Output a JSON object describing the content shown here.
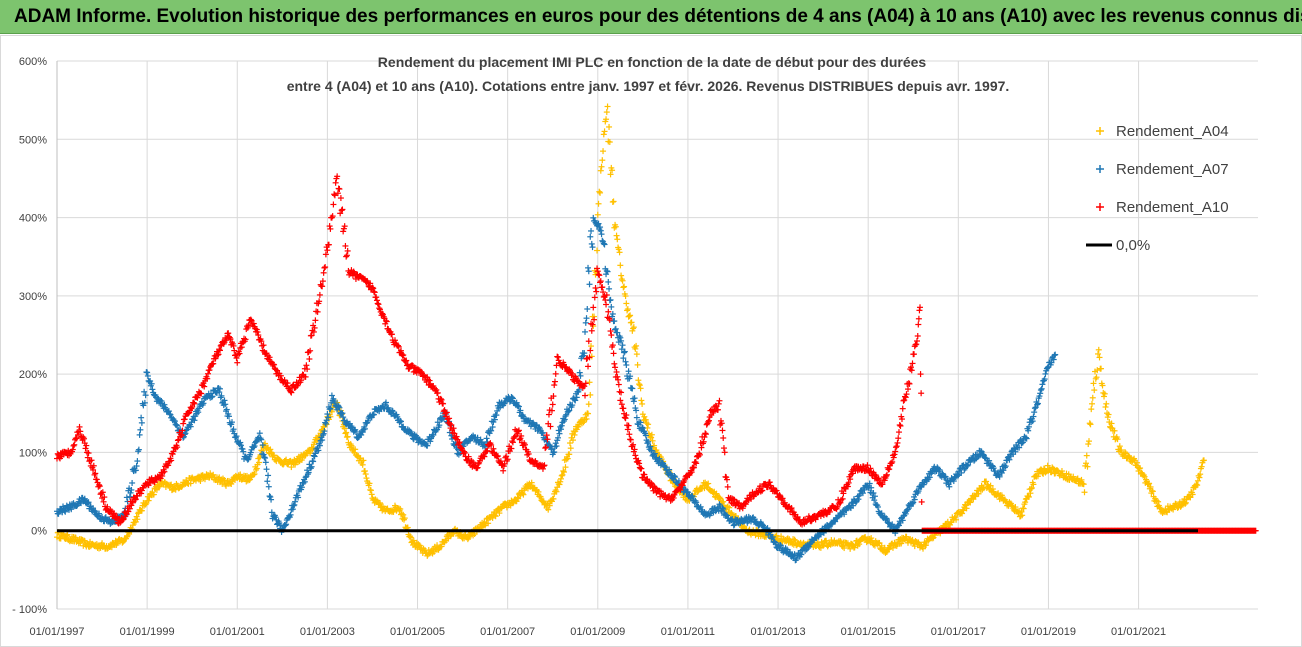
{
  "banner": {
    "title": "ADAM Informe. Evolution historique des performances en euros pour des détentions de 4 ans (A04) à 10 ans (A10) avec les revenus connus distribués"
  },
  "chart_data": {
    "type": "scatter",
    "title_lines": [
      "Rendement du placement IMI PLC en fonction de la date de début pour des durées",
      "entre 4 (A04) et 10 ans (A10).  Cotations entre janv. 1997 et févr. 2026. Revenus DISTRIBUES depuis avr. 1997."
    ],
    "xlabel": "",
    "ylabel": "",
    "x_range": [
      1997.0,
      2023.65
    ],
    "y_range": [
      -100,
      600
    ],
    "y_ticks": [
      -100,
      0,
      100,
      200,
      300,
      400,
      500,
      600
    ],
    "y_tick_labels": [
      "- 100%",
      "0%",
      "100%",
      "200%",
      "300%",
      "400%",
      "500%",
      "600%"
    ],
    "x_ticks": [
      1997,
      1999,
      2001,
      2003,
      2005,
      2007,
      2009,
      2011,
      2013,
      2015,
      2017,
      2019,
      2021
    ],
    "x_tick_labels": [
      "01/01/1997",
      "01/01/1999",
      "01/01/2001",
      "01/01/2003",
      "01/01/2005",
      "01/01/2007",
      "01/01/2009",
      "01/01/2011",
      "01/01/2013",
      "01/01/2015",
      "01/01/2017",
      "01/01/2019",
      "01/01/2021"
    ],
    "grid": true,
    "legend_position": "top-right",
    "series": [
      {
        "name": "Rendement_A04",
        "color": "#ffc000",
        "marker": "+",
        "points": [
          [
            1997.0,
            -5
          ],
          [
            1997.3,
            -10
          ],
          [
            1997.7,
            -18
          ],
          [
            1998.1,
            -20
          ],
          [
            1998.5,
            -12
          ],
          [
            1998.8,
            20
          ],
          [
            1999.0,
            40
          ],
          [
            1999.3,
            60
          ],
          [
            1999.6,
            55
          ],
          [
            2000.0,
            65
          ],
          [
            2000.4,
            70
          ],
          [
            2000.8,
            60
          ],
          [
            2001.0,
            70
          ],
          [
            2001.3,
            65
          ],
          [
            2001.6,
            110
          ],
          [
            2001.9,
            90
          ],
          [
            2002.2,
            85
          ],
          [
            2002.6,
            100
          ],
          [
            2002.9,
            130
          ],
          [
            2003.2,
            165
          ],
          [
            2003.5,
            110
          ],
          [
            2003.8,
            85
          ],
          [
            2004.0,
            40
          ],
          [
            2004.3,
            25
          ],
          [
            2004.6,
            30
          ],
          [
            2004.9,
            -15
          ],
          [
            2005.2,
            -30
          ],
          [
            2005.5,
            -20
          ],
          [
            2005.8,
            0
          ],
          [
            2006.1,
            -10
          ],
          [
            2006.5,
            10
          ],
          [
            2006.9,
            30
          ],
          [
            2007.2,
            40
          ],
          [
            2007.5,
            60
          ],
          [
            2007.9,
            30
          ],
          [
            2008.2,
            70
          ],
          [
            2008.5,
            130
          ],
          [
            2008.8,
            150
          ],
          [
            2009.0,
            400
          ],
          [
            2009.1,
            480
          ],
          [
            2009.2,
            540
          ],
          [
            2009.4,
            380
          ],
          [
            2009.6,
            300
          ],
          [
            2009.8,
            250
          ],
          [
            2010.0,
            150
          ],
          [
            2010.3,
            100
          ],
          [
            2010.7,
            60
          ],
          [
            2011.0,
            40
          ],
          [
            2011.4,
            60
          ],
          [
            2011.7,
            40
          ],
          [
            2012.0,
            20
          ],
          [
            2012.3,
            0
          ],
          [
            2012.7,
            -5
          ],
          [
            2013.0,
            -10
          ],
          [
            2013.4,
            -15
          ],
          [
            2013.8,
            -20
          ],
          [
            2014.2,
            -15
          ],
          [
            2014.6,
            -20
          ],
          [
            2015.0,
            -10
          ],
          [
            2015.4,
            -25
          ],
          [
            2015.8,
            -10
          ],
          [
            2016.2,
            -20
          ],
          [
            2016.6,
            0
          ],
          [
            2017.0,
            20
          ],
          [
            2017.3,
            40
          ],
          [
            2017.6,
            60
          ],
          [
            2018.0,
            40
          ],
          [
            2018.4,
            20
          ],
          [
            2018.7,
            70
          ],
          [
            2019.0,
            80
          ],
          [
            2019.4,
            70
          ],
          [
            2019.8,
            60
          ],
          [
            2020.1,
            230
          ],
          [
            2020.3,
            150
          ],
          [
            2020.6,
            100
          ],
          [
            2020.9,
            90
          ],
          [
            2021.2,
            60
          ],
          [
            2021.5,
            25
          ],
          [
            2021.8,
            30
          ],
          [
            2022.1,
            40
          ],
          [
            2022.3,
            60
          ],
          [
            2022.45,
            90
          ]
        ]
      },
      {
        "name": "Rendement_A07",
        "color": "#1f77b4",
        "marker": "+",
        "points": [
          [
            1997.0,
            25
          ],
          [
            1997.3,
            30
          ],
          [
            1997.6,
            40
          ],
          [
            1997.9,
            20
          ],
          [
            1998.2,
            10
          ],
          [
            1998.5,
            20
          ],
          [
            1998.8,
            100
          ],
          [
            1999.0,
            200
          ],
          [
            1999.2,
            170
          ],
          [
            1999.5,
            150
          ],
          [
            1999.8,
            120
          ],
          [
            2000.0,
            140
          ],
          [
            2000.3,
            170
          ],
          [
            2000.6,
            180
          ],
          [
            2000.9,
            130
          ],
          [
            2001.2,
            90
          ],
          [
            2001.5,
            120
          ],
          [
            2001.8,
            20
          ],
          [
            2002.0,
            0
          ],
          [
            2002.3,
            40
          ],
          [
            2002.6,
            80
          ],
          [
            2002.9,
            120
          ],
          [
            2003.1,
            170
          ],
          [
            2003.4,
            140
          ],
          [
            2003.7,
            120
          ],
          [
            2004.0,
            150
          ],
          [
            2004.3,
            160
          ],
          [
            2004.6,
            140
          ],
          [
            2004.9,
            120
          ],
          [
            2005.2,
            110
          ],
          [
            2005.6,
            150
          ],
          [
            2005.9,
            100
          ],
          [
            2006.2,
            120
          ],
          [
            2006.5,
            110
          ],
          [
            2006.8,
            160
          ],
          [
            2007.1,
            170
          ],
          [
            2007.4,
            140
          ],
          [
            2007.7,
            130
          ],
          [
            2008.0,
            100
          ],
          [
            2008.3,
            150
          ],
          [
            2008.6,
            180
          ],
          [
            2008.9,
            400
          ],
          [
            2009.1,
            380
          ],
          [
            2009.3,
            280
          ],
          [
            2009.6,
            220
          ],
          [
            2009.9,
            140
          ],
          [
            2010.2,
            100
          ],
          [
            2010.5,
            80
          ],
          [
            2010.8,
            60
          ],
          [
            2011.1,
            40
          ],
          [
            2011.4,
            20
          ],
          [
            2011.7,
            30
          ],
          [
            2012.0,
            10
          ],
          [
            2012.4,
            15
          ],
          [
            2012.7,
            5
          ],
          [
            2013.0,
            -20
          ],
          [
            2013.4,
            -35
          ],
          [
            2013.8,
            -10
          ],
          [
            2014.2,
            10
          ],
          [
            2014.6,
            30
          ],
          [
            2015.0,
            60
          ],
          [
            2015.3,
            20
          ],
          [
            2015.6,
            0
          ],
          [
            2015.9,
            30
          ],
          [
            2016.2,
            60
          ],
          [
            2016.5,
            80
          ],
          [
            2016.8,
            60
          ],
          [
            2017.1,
            80
          ],
          [
            2017.5,
            100
          ],
          [
            2017.9,
            70
          ],
          [
            2018.2,
            100
          ],
          [
            2018.5,
            120
          ],
          [
            2018.8,
            170
          ],
          [
            2019.0,
            210
          ],
          [
            2019.15,
            225
          ]
        ]
      },
      {
        "name": "Rendement_A10",
        "color": "#ff0000",
        "marker": "+",
        "points": [
          [
            1997.0,
            95
          ],
          [
            1997.3,
            100
          ],
          [
            1997.5,
            130
          ],
          [
            1997.8,
            80
          ],
          [
            1998.1,
            30
          ],
          [
            1998.4,
            10
          ],
          [
            1998.7,
            40
          ],
          [
            1999.0,
            60
          ],
          [
            1999.3,
            70
          ],
          [
            1999.6,
            100
          ],
          [
            1999.9,
            150
          ],
          [
            2000.2,
            180
          ],
          [
            2000.5,
            220
          ],
          [
            2000.8,
            250
          ],
          [
            2001.0,
            220
          ],
          [
            2001.3,
            270
          ],
          [
            2001.6,
            230
          ],
          [
            2001.9,
            200
          ],
          [
            2002.2,
            180
          ],
          [
            2002.5,
            200
          ],
          [
            2002.8,
            290
          ],
          [
            2003.0,
            360
          ],
          [
            2003.2,
            450
          ],
          [
            2003.5,
            330
          ],
          [
            2003.8,
            320
          ],
          [
            2004.0,
            310
          ],
          [
            2004.2,
            280
          ],
          [
            2004.5,
            240
          ],
          [
            2004.8,
            210
          ],
          [
            2005.1,
            200
          ],
          [
            2005.4,
            180
          ],
          [
            2005.7,
            140
          ],
          [
            2006.0,
            100
          ],
          [
            2006.3,
            80
          ],
          [
            2006.6,
            110
          ],
          [
            2006.9,
            80
          ],
          [
            2007.2,
            130
          ],
          [
            2007.5,
            90
          ],
          [
            2007.8,
            80
          ],
          [
            2008.1,
            220
          ],
          [
            2008.4,
            200
          ],
          [
            2008.7,
            180
          ],
          [
            2009.0,
            330
          ],
          [
            2009.2,
            290
          ],
          [
            2009.4,
            200
          ],
          [
            2009.7,
            120
          ],
          [
            2010.0,
            70
          ],
          [
            2010.3,
            50
          ],
          [
            2010.6,
            40
          ],
          [
            2010.9,
            60
          ],
          [
            2011.2,
            90
          ],
          [
            2011.5,
            150
          ],
          [
            2011.7,
            160
          ],
          [
            2011.9,
            40
          ],
          [
            2012.2,
            30
          ],
          [
            2012.5,
            50
          ],
          [
            2012.8,
            60
          ],
          [
            2013.1,
            40
          ],
          [
            2013.5,
            10
          ],
          [
            2013.9,
            20
          ],
          [
            2014.3,
            30
          ],
          [
            2014.7,
            80
          ],
          [
            2015.0,
            80
          ],
          [
            2015.3,
            60
          ],
          [
            2015.6,
            100
          ],
          [
            2015.9,
            190
          ],
          [
            2016.1,
            250
          ],
          [
            2016.15,
            290
          ],
          [
            2016.2,
            0
          ],
          [
            2017.0,
            0
          ],
          [
            2018.0,
            0
          ],
          [
            2019.0,
            0
          ],
          [
            2020.0,
            0
          ],
          [
            2021.0,
            0
          ],
          [
            2022.0,
            0
          ],
          [
            2023.0,
            0
          ],
          [
            2023.6,
            0
          ]
        ]
      }
    ],
    "reference_line": {
      "name": "0,0%",
      "y": 0,
      "color": "#000000"
    }
  }
}
